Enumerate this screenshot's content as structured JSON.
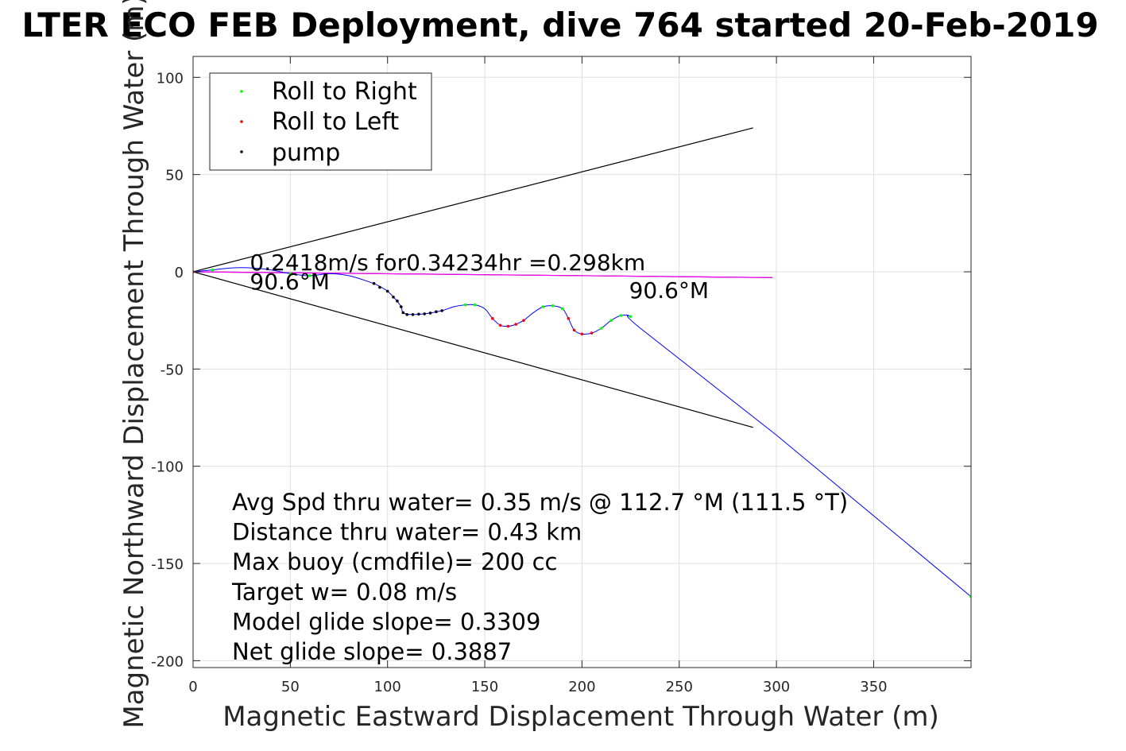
{
  "chart_data": {
    "type": "line",
    "title": "LTER ECO FEB Deployment, dive 764 started 20-Feb-2019",
    "xlabel": "Magnetic Eastward Displacement Through Water (m)",
    "ylabel": "Magnetic Northward Displacement Through Water (m)",
    "xlim": [
      0,
      400
    ],
    "ylim": [
      -205,
      110
    ],
    "xticks": [
      0,
      50,
      100,
      150,
      200,
      250,
      300,
      350
    ],
    "yticks": [
      100,
      50,
      0,
      -50,
      -100,
      -150,
      -200
    ],
    "xtick_labels": [
      "0",
      "50",
      "100",
      "150",
      "200",
      "250",
      "300",
      "350"
    ],
    "ytick_labels": [
      "100",
      "50",
      "0",
      "-50",
      "-100",
      "-150",
      "-200"
    ],
    "grid": true,
    "legend_position": "top-left",
    "legend": [
      {
        "label": "Roll to Right",
        "color": "#00ff00"
      },
      {
        "label": "Roll to Left",
        "color": "#ff0000"
      },
      {
        "label": "pump",
        "color": "#000000"
      }
    ],
    "lines": [
      {
        "role": "cone-upper",
        "color": "#000000",
        "points": [
          [
            0,
            0
          ],
          [
            288,
            74
          ]
        ]
      },
      {
        "role": "cone-lower",
        "color": "#000000",
        "points": [
          [
            0,
            0
          ],
          [
            288,
            -80
          ]
        ]
      },
      {
        "role": "heading",
        "color": "#000000",
        "points": [
          [
            0,
            0
          ],
          [
            298,
            -3
          ]
        ]
      },
      {
        "role": "dac",
        "color": "#ff00ff",
        "points": [
          [
            0,
            0
          ],
          [
            298,
            -3
          ]
        ]
      }
    ],
    "track": {
      "color": "#0000ff",
      "points": [
        [
          0,
          0
        ],
        [
          10,
          1
        ],
        [
          20,
          2
        ],
        [
          30,
          2
        ],
        [
          40,
          1
        ],
        [
          50,
          -1
        ],
        [
          60,
          -2
        ],
        [
          70,
          -1
        ],
        [
          80,
          -2
        ],
        [
          90,
          -5
        ],
        [
          95,
          -7
        ],
        [
          100,
          -10
        ],
        [
          104,
          -14
        ],
        [
          107,
          -18
        ],
        [
          108,
          -21
        ],
        [
          112,
          -22
        ],
        [
          120,
          -21.5
        ],
        [
          128,
          -20
        ],
        [
          134,
          -18
        ],
        [
          140,
          -17
        ],
        [
          145,
          -17
        ],
        [
          150,
          -19
        ],
        [
          154,
          -24
        ],
        [
          158,
          -27.5
        ],
        [
          162,
          -28
        ],
        [
          166,
          -27
        ],
        [
          170,
          -25
        ],
        [
          175,
          -21
        ],
        [
          180,
          -18
        ],
        [
          185,
          -17.5
        ],
        [
          190,
          -19
        ],
        [
          193,
          -24
        ],
        [
          196,
          -30
        ],
        [
          200,
          -32
        ],
        [
          205,
          -31.5
        ],
        [
          210,
          -29
        ],
        [
          215,
          -25
        ],
        [
          220,
          -22.5
        ],
        [
          225,
          -23
        ],
        [
          230,
          -29
        ],
        [
          300,
          -84
        ],
        [
          400,
          -167
        ]
      ]
    },
    "markers": {
      "roll_right": [
        [
          10,
          1
        ],
        [
          50,
          -1
        ],
        [
          60,
          -2
        ],
        [
          140,
          -17
        ],
        [
          145,
          -17
        ],
        [
          180,
          -18
        ],
        [
          185,
          -17.5
        ],
        [
          190,
          -19
        ],
        [
          210,
          -29
        ],
        [
          215,
          -25
        ],
        [
          220,
          -22.5
        ],
        [
          225,
          -23
        ],
        [
          400,
          -167
        ]
      ],
      "roll_left": [
        [
          0,
          0
        ],
        [
          154,
          -24
        ],
        [
          158,
          -27.5
        ],
        [
          162,
          -28
        ],
        [
          166,
          -27
        ],
        [
          170,
          -25
        ],
        [
          193,
          -24
        ],
        [
          196,
          -30
        ],
        [
          200,
          -32
        ],
        [
          205,
          -31.5
        ]
      ],
      "pump": [
        [
          93,
          -6
        ],
        [
          96,
          -8
        ],
        [
          100,
          -10
        ],
        [
          103,
          -13
        ],
        [
          105,
          -15
        ],
        [
          107,
          -18
        ],
        [
          108,
          -21
        ],
        [
          110,
          -22
        ],
        [
          113,
          -22
        ],
        [
          116,
          -21.8
        ],
        [
          119,
          -21.6
        ],
        [
          122,
          -21.2
        ],
        [
          125,
          -20.5
        ],
        [
          128,
          -20
        ]
      ]
    },
    "annotations": [
      {
        "text": "0.2418m/s for0.34234hr =0.298km",
        "x": 30,
        "y": 0
      },
      {
        "text": "90.6°M",
        "x": 30,
        "y": -8
      },
      {
        "text": "90.6°M",
        "x": 225,
        "y": -13
      }
    ],
    "stats": [
      "Avg Spd thru water=  0.35 m/s @ 112.7 °M (111.5 °T)",
      "Distance thru water=  0.43 km",
      "Max buoy (cmdfile)= 200 cc",
      "Target w= 0.08 m/s",
      "Model glide slope= 0.3309",
      "Net glide slope= 0.3887"
    ]
  }
}
